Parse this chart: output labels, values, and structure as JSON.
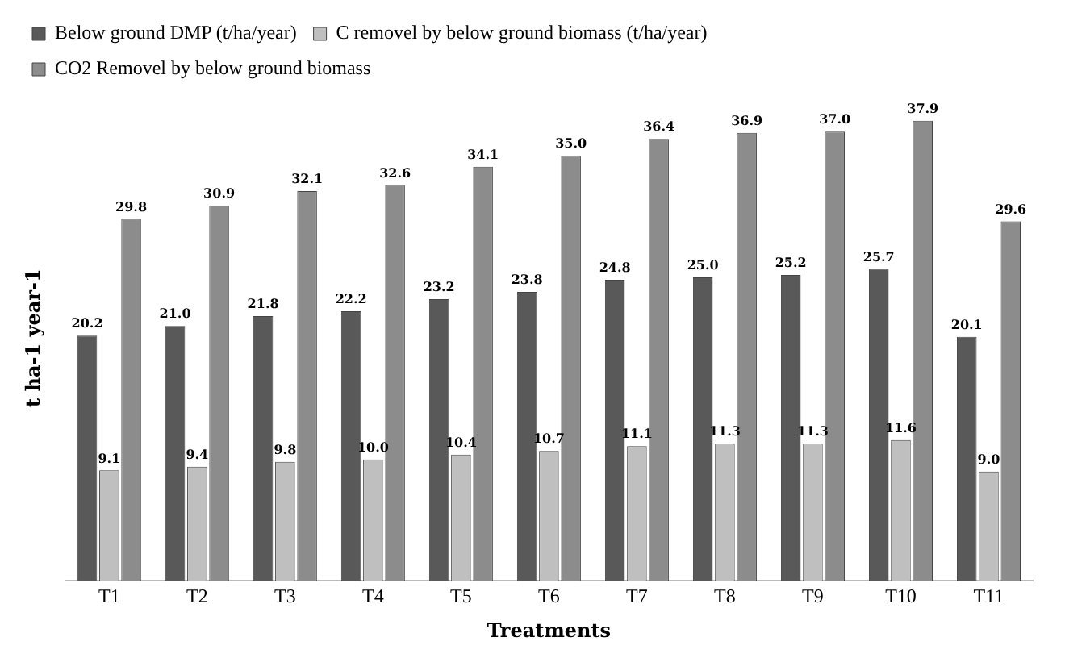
{
  "chart_data": {
    "type": "bar",
    "xlabel": "Treatments",
    "ylabel": "t ha-1 year-1",
    "categories": [
      "T1",
      "T2",
      "T3",
      "T4",
      "T5",
      "T6",
      "T7",
      "T8",
      "T9",
      "T10",
      "T11"
    ],
    "series": [
      {
        "name": "Below ground DMP (t/ha/year)",
        "color": "#595959",
        "values": [
          20.2,
          21.0,
          21.8,
          22.2,
          23.2,
          23.8,
          24.8,
          25.0,
          25.2,
          25.7,
          20.1
        ],
        "value_labels": [
          "20.2",
          "21.0",
          "21.8",
          "22.2",
          "23.2",
          "23.8",
          "24.8",
          "25.0",
          "25.2",
          "25.7",
          "20.1"
        ]
      },
      {
        "name": "C removel by below ground biomass (t/ha/year)",
        "color": "#bfbfbf",
        "values": [
          9.1,
          9.4,
          9.8,
          10.0,
          10.4,
          10.7,
          11.1,
          11.3,
          11.3,
          11.6,
          9.0
        ],
        "value_labels": [
          "9.1",
          "9.4",
          "9.8",
          "10.0",
          "10.4",
          "10.7",
          "11.1",
          "11.3",
          "11.3",
          "11.6",
          "9.0"
        ]
      },
      {
        "name": "CO2 Removel by below ground biomass",
        "color": "#8c8c8c",
        "values": [
          29.8,
          30.9,
          32.1,
          32.6,
          34.1,
          35.0,
          36.4,
          36.9,
          37.0,
          37.9,
          29.6
        ],
        "value_labels": [
          "29.8",
          "30.9",
          "32.1",
          "32.6",
          "34.1",
          "35.0",
          "36.4",
          "36.9",
          "37.0",
          "37.9",
          "29.6"
        ]
      }
    ],
    "legend": "top left",
    "grid": false
  }
}
